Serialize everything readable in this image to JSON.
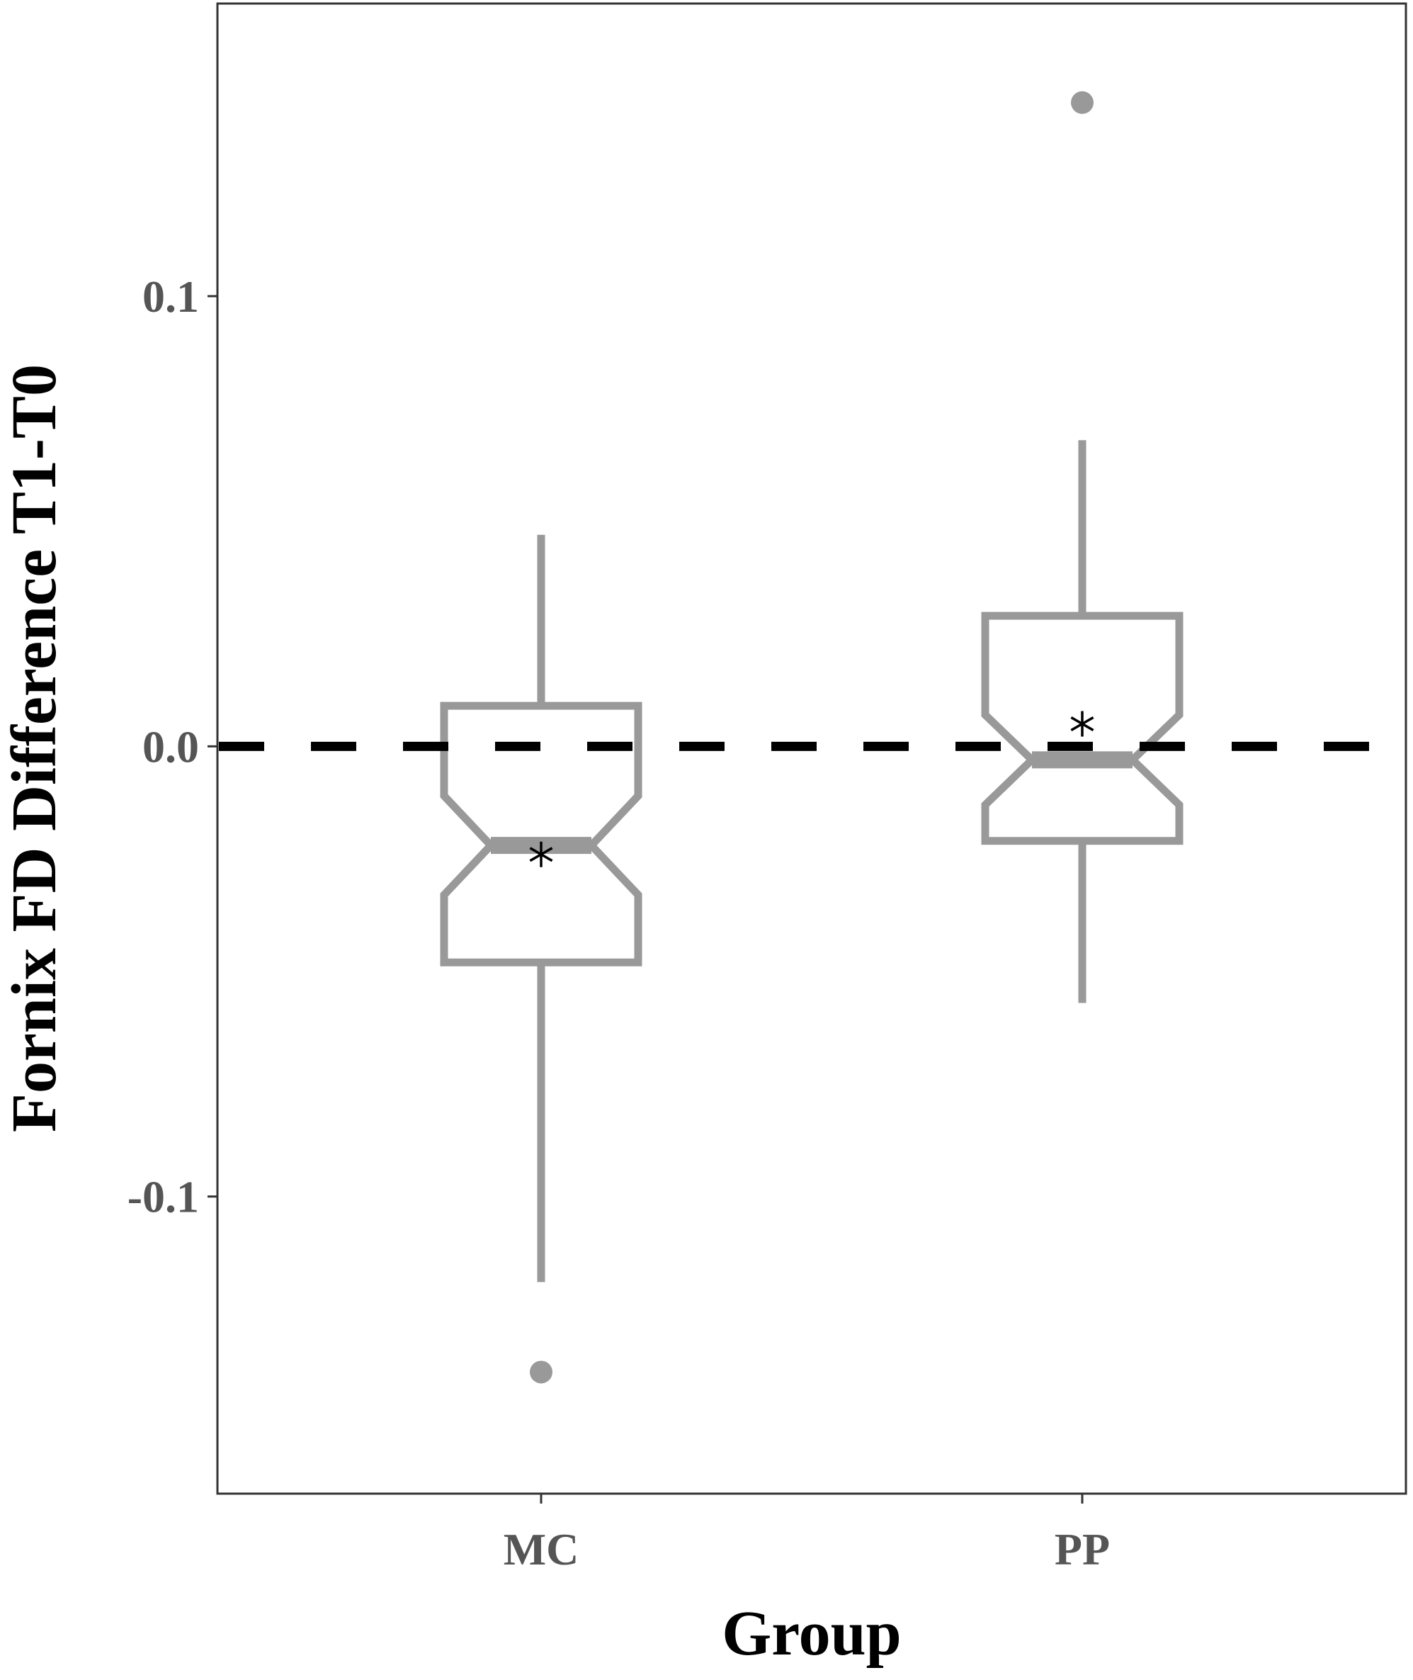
{
  "chart_data": {
    "type": "boxplot",
    "title": "",
    "xlabel": "Group",
    "ylabel": "Fornix FD Difference T1-T0",
    "ylim": [
      -0.166,
      0.165
    ],
    "yticks": [
      -0.1,
      0.0,
      0.1
    ],
    "ytick_labels": [
      "-0.1",
      "0.0",
      "0.1"
    ],
    "categories": [
      "MC",
      "PP"
    ],
    "reference_line": {
      "y": 0.0,
      "style": "dashed",
      "color": "#000000"
    },
    "boxes": [
      {
        "group": "MC",
        "whisker_low": -0.119,
        "q1": -0.048,
        "notch_low": -0.033,
        "median": -0.022,
        "notch_high": -0.011,
        "q3": 0.009,
        "whisker_high": 0.047,
        "mean": -0.024,
        "outliers": [
          -0.139
        ]
      },
      {
        "group": "PP",
        "whisker_low": -0.057,
        "q1": -0.021,
        "notch_low": -0.013,
        "median": -0.003,
        "notch_high": 0.007,
        "q3": 0.029,
        "whisker_high": 0.068,
        "mean": 0.005,
        "outliers": [
          0.143
        ]
      }
    ],
    "box_color": "#999999",
    "mean_marker": "asterisk",
    "grid": false,
    "legend": "none"
  }
}
